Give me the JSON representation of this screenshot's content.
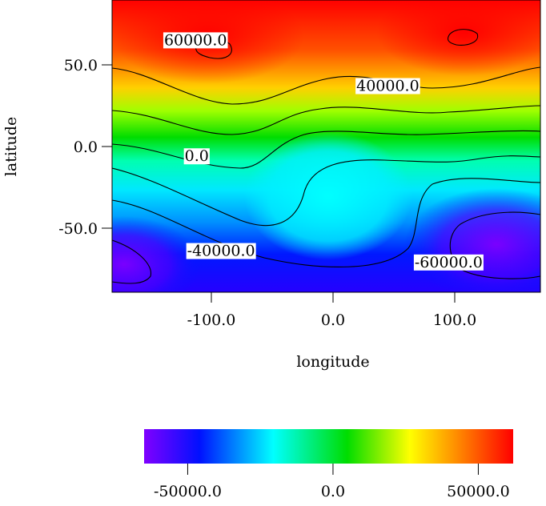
{
  "chart_data": {
    "type": "heatmap",
    "title": "",
    "xlabel": "longitude",
    "ylabel": "latitude",
    "xlim": [
      -180,
      180
    ],
    "ylim": [
      -90,
      90
    ],
    "x_ticks": [
      {
        "value": -100,
        "label": "-100.0"
      },
      {
        "value": 0,
        "label": "0.0"
      },
      {
        "value": 100,
        "label": "100.0"
      }
    ],
    "y_ticks": [
      {
        "value": 50,
        "label": "50.0"
      },
      {
        "value": 0,
        "label": "0.0"
      },
      {
        "value": -50,
        "label": "-50.0"
      }
    ],
    "colormap": [
      "#8000ff",
      "#0010ff",
      "#00ffff",
      "#00dd00",
      "#ffff00",
      "#ff8000",
      "#ff0000"
    ],
    "color_range": [
      -65000,
      62000
    ],
    "colorbar_ticks": [
      {
        "value": -50000,
        "label": "-50000.0"
      },
      {
        "value": 0,
        "label": "0.0"
      },
      {
        "value": 50000,
        "label": "50000.0"
      }
    ],
    "contour_levels": [
      -60000,
      -40000,
      -20000,
      0,
      20000,
      40000,
      60000
    ],
    "contour_labels": [
      {
        "label": "60000.0",
        "lon": -113,
        "lat": 65
      },
      {
        "label": "40000.0",
        "lon": 45,
        "lat": 37
      },
      {
        "label": "0.0",
        "lon": -112,
        "lat": -6
      },
      {
        "label": "-40000.0",
        "lon": -92,
        "lat": -64
      },
      {
        "label": "-60000.0",
        "lon": 95,
        "lat": -71
      }
    ]
  }
}
